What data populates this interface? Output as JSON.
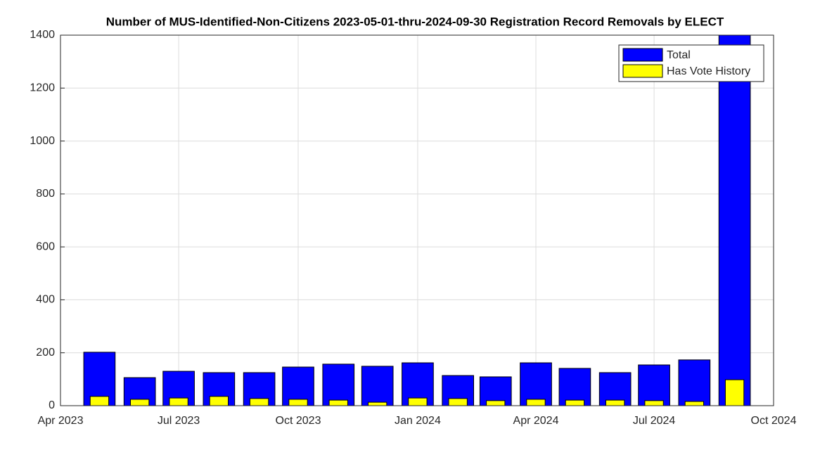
{
  "chart_data": {
    "type": "bar",
    "title": "Number of MUS-Identified-Non-Citizens 2023-05-01-thru-2024-09-30 Registration Record Removals by ELECT",
    "x": [
      "2023-05",
      "2023-06",
      "2023-07",
      "2023-08",
      "2023-09",
      "2023-10",
      "2023-11",
      "2023-12",
      "2024-01",
      "2024-02",
      "2024-03",
      "2024-04",
      "2024-05",
      "2024-06",
      "2024-07",
      "2024-08",
      "2024-09"
    ],
    "series": [
      {
        "name": "Total",
        "color": "#0000ff",
        "values": [
          202,
          106,
          130,
          125,
          125,
          146,
          157,
          149,
          162,
          114,
          109,
          162,
          141,
          125,
          154,
          173,
          1400
        ]
      },
      {
        "name": "Has Vote History",
        "color": "#ffff00",
        "values": [
          35,
          24,
          29,
          35,
          27,
          24,
          21,
          13,
          29,
          27,
          19,
          24,
          21,
          21,
          19,
          16,
          98
        ]
      }
    ],
    "xlim": [
      "2023-04",
      "2024-10"
    ],
    "xticks": [
      {
        "value": "2023-04",
        "label": "Apr 2023"
      },
      {
        "value": "2023-07",
        "label": "Jul 2023"
      },
      {
        "value": "2023-10",
        "label": "Oct 2023"
      },
      {
        "value": "2024-01",
        "label": "Jan 2024"
      },
      {
        "value": "2024-04",
        "label": "Apr 2024"
      },
      {
        "value": "2024-07",
        "label": "Jul 2024"
      },
      {
        "value": "2024-10",
        "label": "Oct 2024"
      }
    ],
    "ylim": [
      0,
      1400
    ],
    "yticks": [
      0,
      200,
      400,
      600,
      800,
      1000,
      1200,
      1400
    ],
    "grid": true,
    "legend": "top-right"
  }
}
